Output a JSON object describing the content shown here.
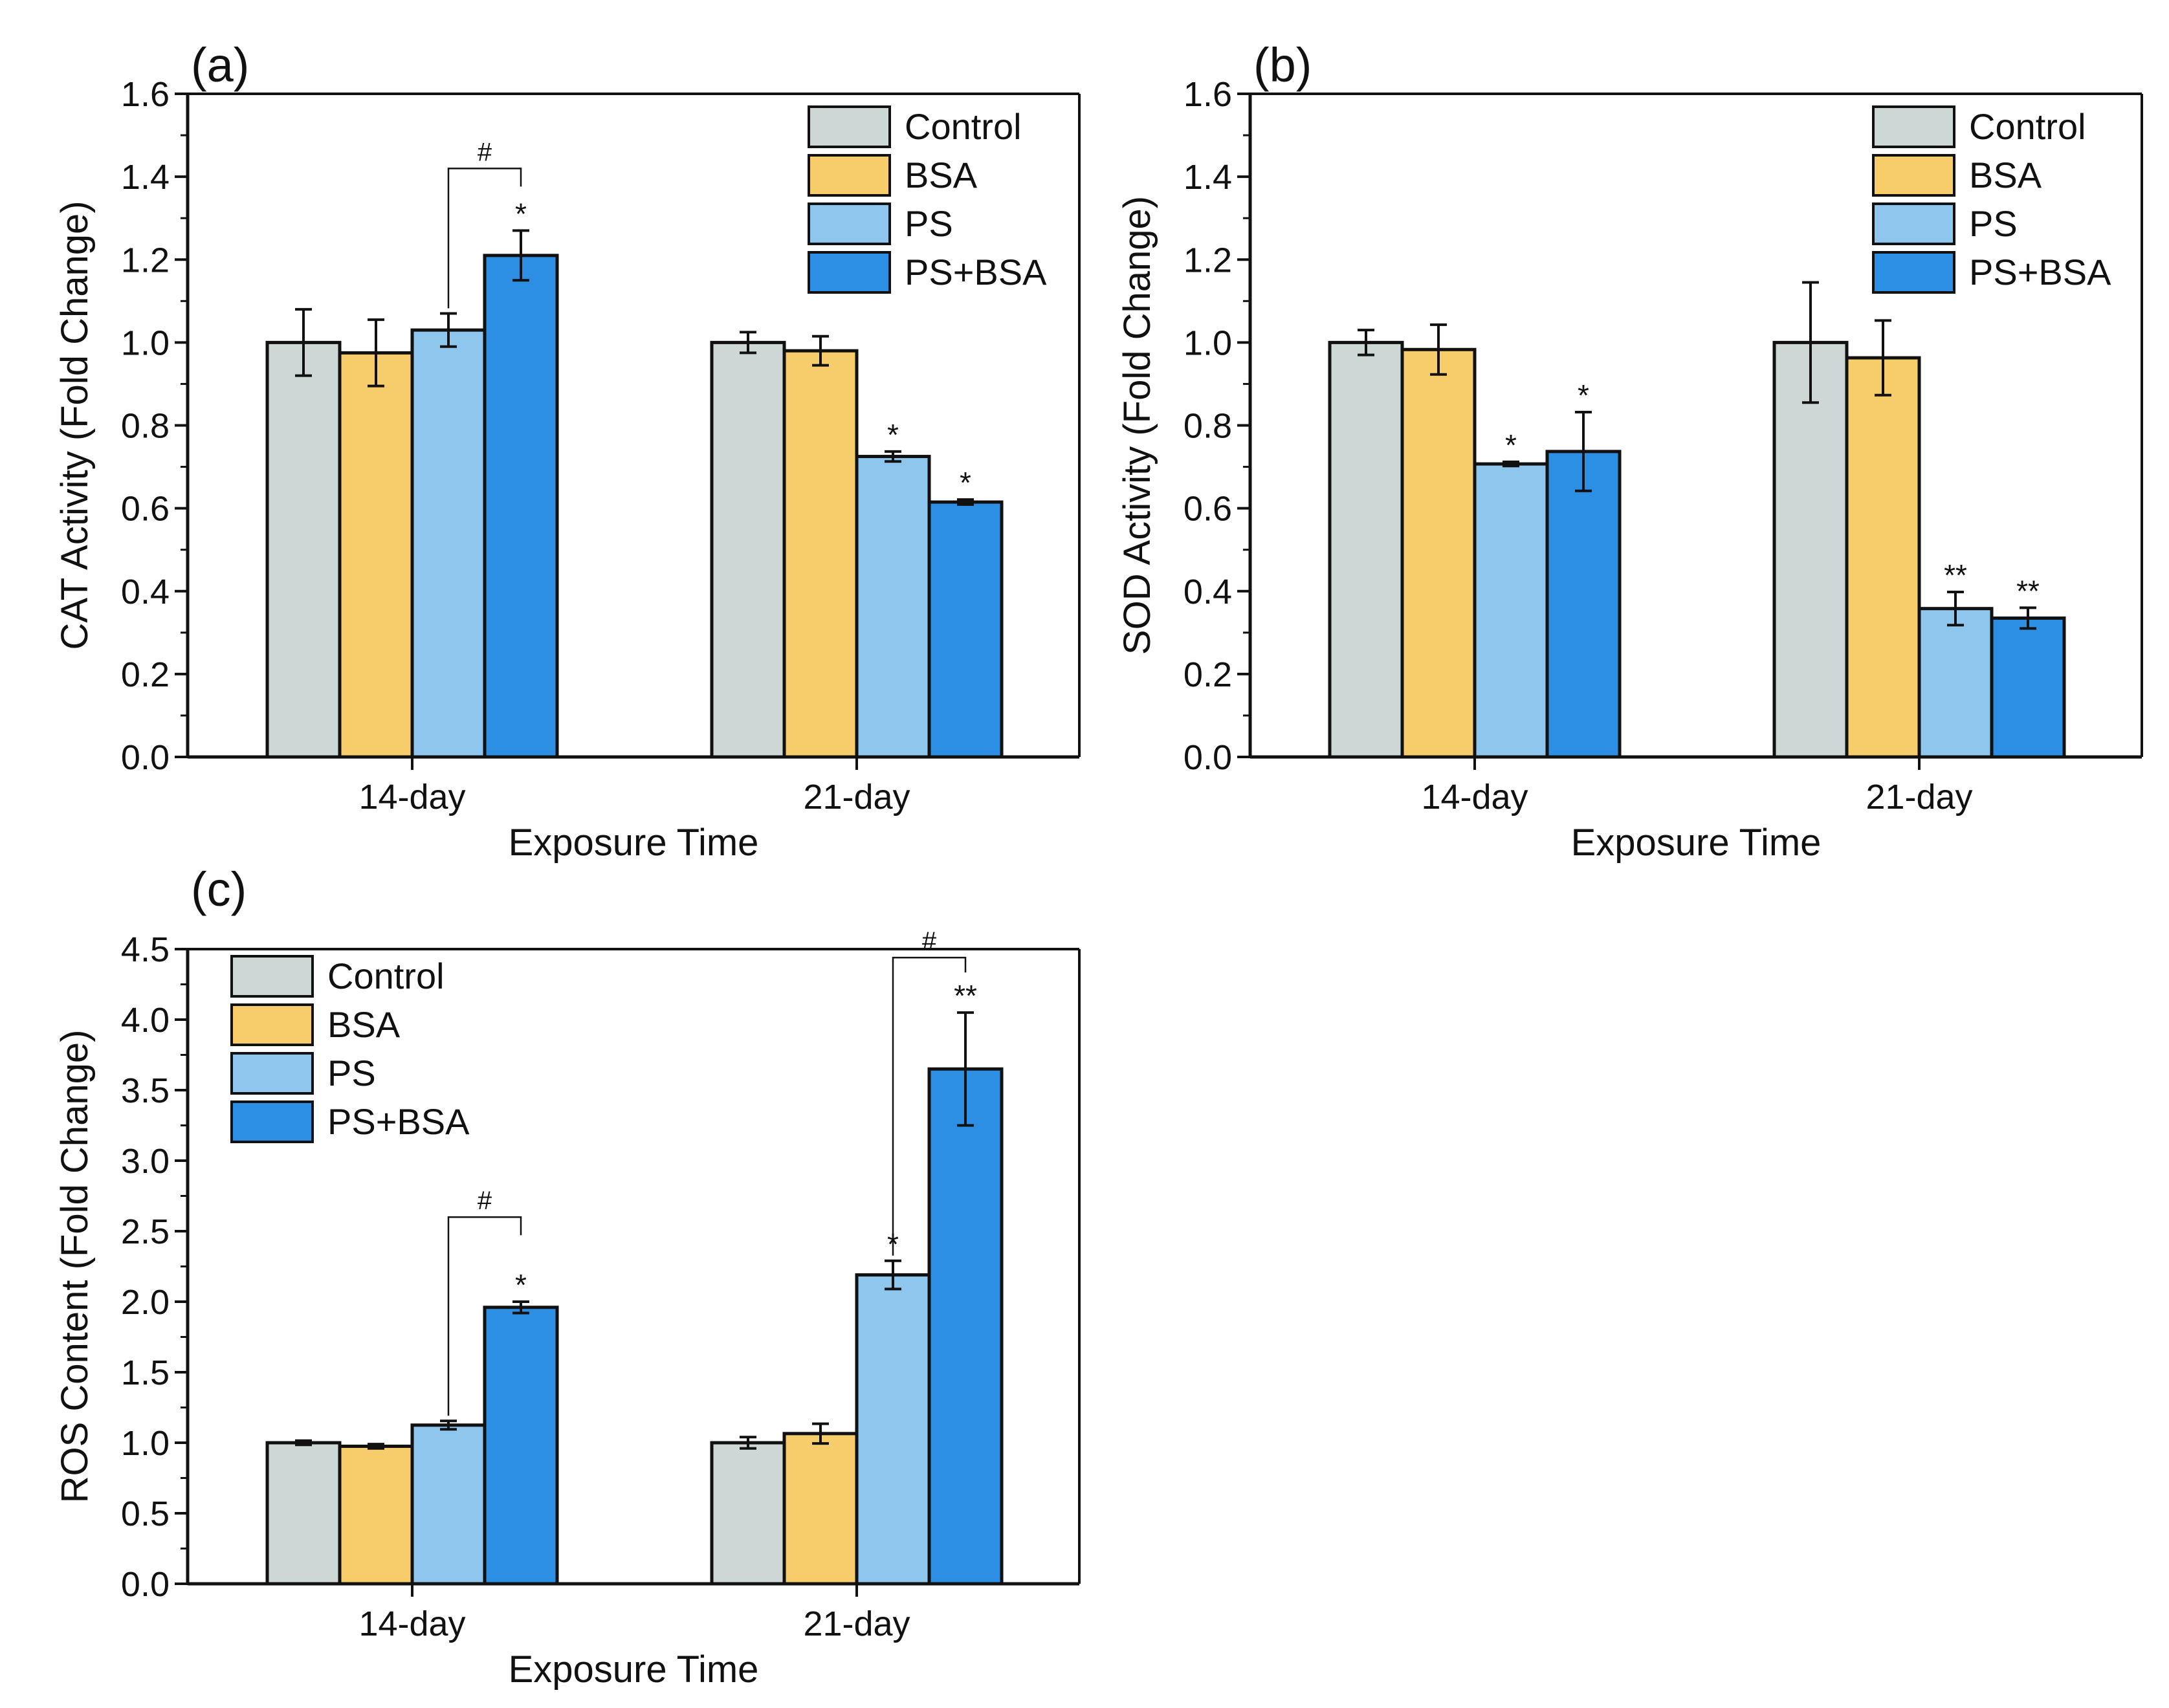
{
  "figure": {
    "colors": {
      "Control": "#cdd8d6",
      "BSA": "#f7cd6c",
      "PS": "#8ec6ee",
      "PS+BSA": "#2c8fe4",
      "axis": "#111111"
    }
  },
  "chart_data": [
    {
      "id": "a",
      "panel_label": "(a)",
      "type": "bar",
      "title": "",
      "xlabel": "Exposure Time",
      "ylabel": "CAT Activity (Fold Change)",
      "categories": [
        "14-day",
        "21-day"
      ],
      "ylim": [
        0,
        1.6
      ],
      "yticks": [
        0.0,
        0.2,
        0.4,
        0.6,
        0.8,
        1.0,
        1.2,
        1.4,
        1.6
      ],
      "ytick_labels": [
        "0.0",
        "0.2",
        "0.4",
        "0.6",
        "0.8",
        "1.0",
        "1.2",
        "1.4",
        "1.6"
      ],
      "legend_position": "top-right",
      "series": [
        {
          "name": "Control",
          "values": [
            1.0,
            1.0
          ],
          "errors": [
            0.08,
            0.025
          ],
          "sig": [
            "",
            ""
          ]
        },
        {
          "name": "BSA",
          "values": [
            0.975,
            0.98
          ],
          "errors": [
            0.08,
            0.035
          ],
          "sig": [
            "",
            ""
          ]
        },
        {
          "name": "PS",
          "values": [
            1.03,
            0.725
          ],
          "errors": [
            0.04,
            0.012
          ],
          "sig": [
            "",
            "*"
          ]
        },
        {
          "name": "PS+BSA",
          "values": [
            1.21,
            0.615
          ],
          "errors": [
            0.06,
            0.006
          ],
          "sig": [
            "*",
            "*"
          ]
        }
      ],
      "brackets": [
        {
          "category": 0,
          "from_series": 2,
          "to_series": 3,
          "label": "#",
          "level": 1.42
        }
      ]
    },
    {
      "id": "b",
      "panel_label": "(b)",
      "type": "bar",
      "title": "",
      "xlabel": "Exposure Time",
      "ylabel": "SOD Activity (Fold Change)",
      "categories": [
        "14-day",
        "21-day"
      ],
      "ylim": [
        0,
        1.6
      ],
      "yticks": [
        0.0,
        0.2,
        0.4,
        0.6,
        0.8,
        1.0,
        1.2,
        1.4,
        1.6
      ],
      "ytick_labels": [
        "0.0",
        "0.2",
        "0.4",
        "0.6",
        "0.8",
        "1.0",
        "1.2",
        "1.4",
        "1.6"
      ],
      "legend_position": "top-right",
      "series": [
        {
          "name": "Control",
          "values": [
            1.0,
            1.0
          ],
          "errors": [
            0.03,
            0.145
          ],
          "sig": [
            "",
            ""
          ]
        },
        {
          "name": "BSA",
          "values": [
            0.983,
            0.963
          ],
          "errors": [
            0.06,
            0.09
          ],
          "sig": [
            "",
            ""
          ]
        },
        {
          "name": "PS",
          "values": [
            0.707,
            0.358
          ],
          "errors": [
            0.005,
            0.04
          ],
          "sig": [
            "*",
            "**"
          ]
        },
        {
          "name": "PS+BSA",
          "values": [
            0.737,
            0.335
          ],
          "errors": [
            0.095,
            0.025
          ],
          "sig": [
            "*",
            "**"
          ]
        }
      ],
      "brackets": []
    },
    {
      "id": "c",
      "panel_label": "(c)",
      "type": "bar",
      "title": "",
      "xlabel": "Exposure Time",
      "ylabel": "ROS Content (Fold Change)",
      "categories": [
        "14-day",
        "21-day"
      ],
      "ylim": [
        0,
        4.5
      ],
      "yticks": [
        0.0,
        0.5,
        1.0,
        1.5,
        2.0,
        2.5,
        3.0,
        3.5,
        4.0,
        4.5
      ],
      "ytick_labels": [
        "0.0",
        "0.5",
        "1.0",
        "1.5",
        "2.0",
        "2.5",
        "3.0",
        "3.5",
        "4.0",
        "4.5"
      ],
      "legend_position": "top-left",
      "series": [
        {
          "name": "Control",
          "values": [
            1.0,
            1.0
          ],
          "errors": [
            0.015,
            0.04
          ],
          "sig": [
            "",
            ""
          ]
        },
        {
          "name": "BSA",
          "values": [
            0.975,
            1.065
          ],
          "errors": [
            0.015,
            0.07
          ],
          "sig": [
            "",
            ""
          ]
        },
        {
          "name": "PS",
          "values": [
            1.125,
            2.19
          ],
          "errors": [
            0.03,
            0.1
          ],
          "sig": [
            "",
            "*"
          ]
        },
        {
          "name": "PS+BSA",
          "values": [
            1.96,
            3.65
          ],
          "errors": [
            0.04,
            0.4
          ],
          "sig": [
            "*",
            "**"
          ]
        }
      ],
      "brackets": [
        {
          "category": 0,
          "from_series": 2,
          "to_series": 3,
          "label": "#",
          "level": 2.6
        },
        {
          "category": 1,
          "from_series": 2,
          "to_series": 3,
          "label": "#",
          "level": 4.44
        }
      ]
    }
  ]
}
